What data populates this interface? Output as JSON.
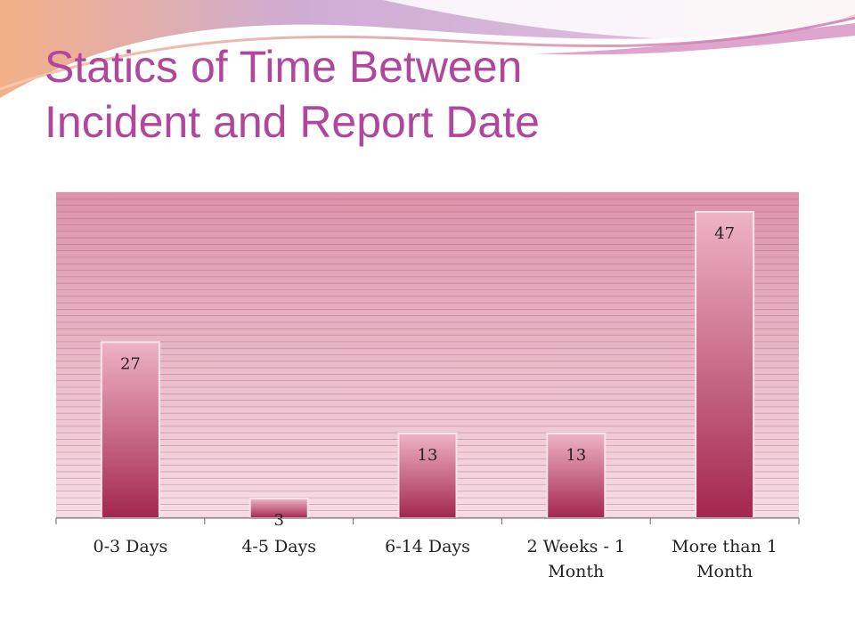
{
  "slide": {
    "title_lines": [
      "Statics of Time Between",
      "Incident and Report Date"
    ],
    "colors": {
      "title": "#b0479d",
      "plot_top": "#dc92aa",
      "plot_bottom": "#f7dde5",
      "bar_top": "#efb3c6",
      "bar_bottom": "#a3264f",
      "gridline": "#9a5a6e"
    }
  },
  "chart_data": {
    "type": "bar",
    "categories": [
      "0-3 Days",
      "4-5 Days",
      "6-14 Days",
      "2 Weeks - 1 Month",
      "More than 1 Month"
    ],
    "category_label_lines": [
      [
        "0-3 Days"
      ],
      [
        "4-5 Days"
      ],
      [
        "6-14 Days"
      ],
      [
        "2 Weeks - 1",
        "Month"
      ],
      [
        "More than 1",
        "Month"
      ]
    ],
    "values": [
      27,
      3,
      13,
      13,
      47
    ],
    "data_labels": [
      "27",
      "3",
      "13",
      "13",
      "47"
    ],
    "title": "",
    "xlabel": "",
    "ylabel": "",
    "ylim": [
      0,
      50
    ],
    "grid": true,
    "legend": "none"
  }
}
